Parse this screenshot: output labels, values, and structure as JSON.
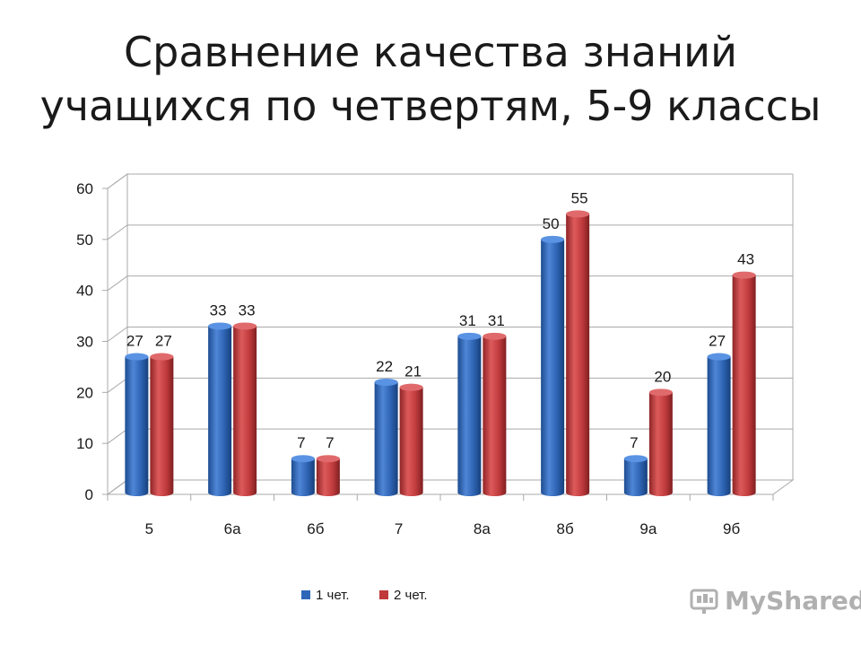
{
  "title_line1": "Сравнение качества знаний",
  "title_line2": "учащихся по четвертям, 5-9 классы",
  "watermark_text": "MyShared",
  "colors": {
    "series1": "#2e67b8",
    "series2": "#c0393b",
    "grid": "#a9a9a9"
  },
  "chart_data": {
    "type": "bar",
    "title": "Сравнение качества знаний учащихся по четвертям, 5-9 классы",
    "categories": [
      "5",
      "6а",
      "6б",
      "7",
      "8а",
      "8б",
      "9а",
      "9б"
    ],
    "series": [
      {
        "name": "1 чет.",
        "values": [
          27,
          33,
          7,
          22,
          31,
          50,
          7,
          27
        ]
      },
      {
        "name": "2 чет.",
        "values": [
          27,
          33,
          7,
          21,
          31,
          55,
          20,
          43
        ]
      }
    ],
    "yticks": [
      0,
      10,
      20,
      30,
      40,
      50,
      60
    ],
    "ylim": [
      0,
      60
    ],
    "grid": true,
    "legend": "bottom"
  }
}
